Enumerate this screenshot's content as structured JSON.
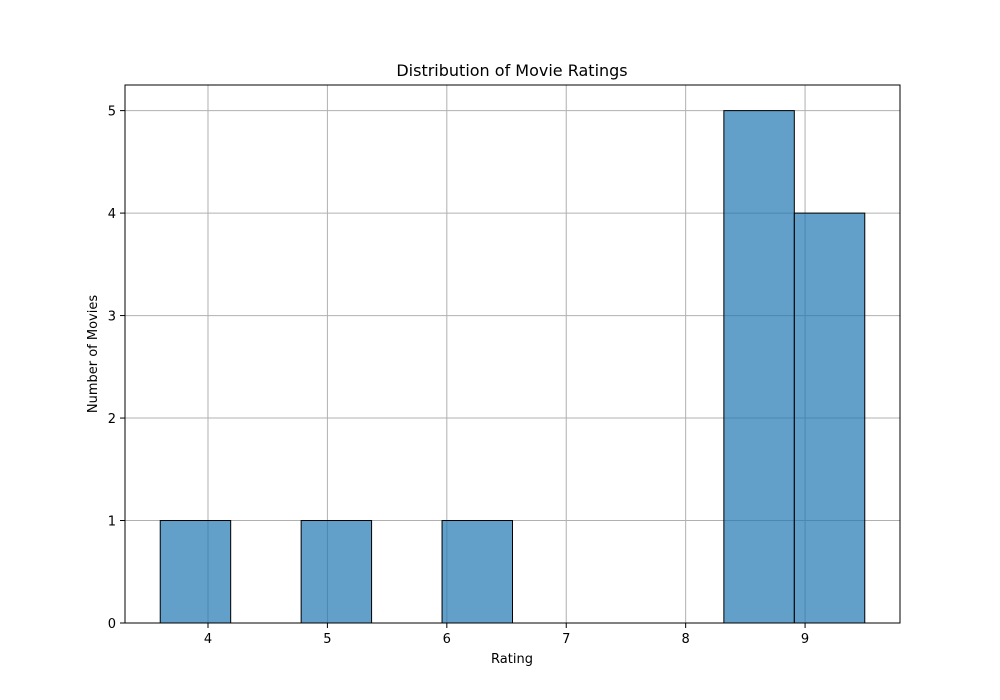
{
  "chart_data": {
    "type": "bar",
    "title": "Distribution of Movie Ratings",
    "xlabel": "Rating",
    "ylabel": "Number of Movies",
    "bins": [
      {
        "start": 3.6,
        "end": 4.19,
        "count": 1
      },
      {
        "start": 4.19,
        "end": 4.78,
        "count": 0
      },
      {
        "start": 4.78,
        "end": 5.37,
        "count": 1
      },
      {
        "start": 5.37,
        "end": 5.96,
        "count": 0
      },
      {
        "start": 5.96,
        "end": 6.55,
        "count": 1
      },
      {
        "start": 6.55,
        "end": 7.14,
        "count": 0
      },
      {
        "start": 7.14,
        "end": 7.73,
        "count": 0
      },
      {
        "start": 7.73,
        "end": 8.32,
        "count": 0
      },
      {
        "start": 8.32,
        "end": 8.91,
        "count": 5
      },
      {
        "start": 8.91,
        "end": 9.5,
        "count": 4
      }
    ],
    "xlim": [
      3.305,
      9.795
    ],
    "ylim": [
      0,
      5.25
    ],
    "xticks": [
      4,
      5,
      6,
      7,
      8,
      9
    ],
    "yticks": [
      0,
      1,
      2,
      3,
      4,
      5
    ],
    "grid": true,
    "colors": {
      "bar_fill": "#1f77b4",
      "bar_edge": "#000000",
      "grid": "#b0b0b0"
    }
  }
}
